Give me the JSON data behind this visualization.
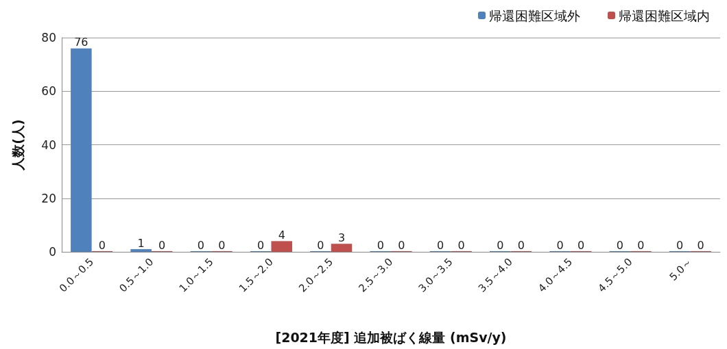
{
  "chart_data": {
    "type": "bar",
    "xlabel": "[2021年度] 追加被ばく線量 (mSv/y)",
    "ylabel": "人数(人)",
    "categories": [
      "0.0～0.5",
      "0.5～1.0",
      "1.0～1.5",
      "1.5～2.0",
      "2.0～2.5",
      "2.5～3.0",
      "3.0～3.5",
      "3.5～4.0",
      "4.0～4.5",
      "4.5～5.0",
      "5.0～"
    ],
    "series": [
      {
        "name": "帰還困難区域外",
        "color": "#4f81bd",
        "values": [
          76,
          1,
          0,
          0,
          0,
          0,
          0,
          0,
          0,
          0,
          0
        ]
      },
      {
        "name": "帰還困難区域内",
        "color": "#c0504d",
        "values": [
          0,
          0,
          0,
          4,
          3,
          0,
          0,
          0,
          0,
          0,
          0
        ]
      }
    ],
    "ylim": [
      0,
      80
    ],
    "yticks": [
      0,
      20,
      40,
      60,
      80
    ],
    "grid": "y",
    "legend": "top right",
    "data_labels": true
  }
}
